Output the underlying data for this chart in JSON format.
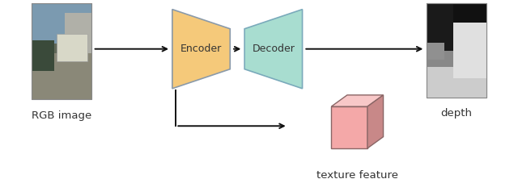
{
  "bg_color": "#ffffff",
  "encoder_color": "#f5c97a",
  "encoder_edge_color": "#8a9aaa",
  "decoder_color": "#a8ddd0",
  "decoder_edge_color": "#7aaabb",
  "box_face_color": "#f4a8a8",
  "box_top_color": "#f8c8c8",
  "box_side_color": "#c88888",
  "box_edge_color": "#8a6666",
  "arrow_color": "#111111",
  "text_color": "#333333",
  "label_rgb": "RGB image",
  "label_depth": "depth",
  "label_texture": "texture feature",
  "label_encoder": "Encoder",
  "label_decoder": "Decoder"
}
